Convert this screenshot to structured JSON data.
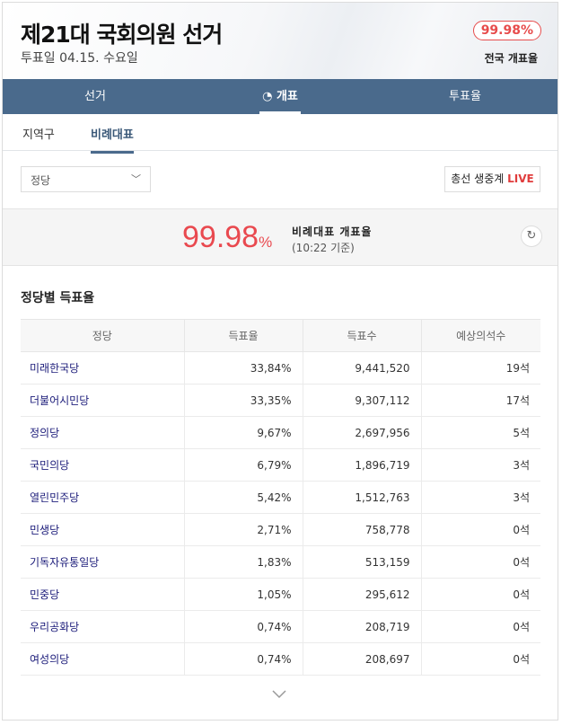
{
  "header": {
    "title": "제21대 국회의원 선거",
    "subtitle": "투표일 04.15. 수요일",
    "badge": "99.98%",
    "badge_label": "전국 개표율"
  },
  "nav": [
    {
      "label": "선거"
    },
    {
      "label": "개표",
      "icon": "ballot-icon",
      "active": true
    },
    {
      "label": "투표율"
    }
  ],
  "subtabs": [
    {
      "label": "지역구"
    },
    {
      "label": "비례대표",
      "active": true
    }
  ],
  "filter": {
    "selected": "정당"
  },
  "live_button": {
    "label": "총선 생중계",
    "live": "LIVE"
  },
  "rate": {
    "value": "99.98",
    "unit": "%",
    "label": "비례대표 개표율",
    "time": "(10:22 기준)"
  },
  "section_title": "정당별 득표율",
  "table": {
    "headers": [
      "정당",
      "득표율",
      "득표수",
      "예상의석수"
    ],
    "rows": [
      [
        "미래한국당",
        "33,84%",
        "9,441,520",
        "19석"
      ],
      [
        "더불어시민당",
        "33,35%",
        "9,307,112",
        "17석"
      ],
      [
        "정의당",
        "9,67%",
        "2,697,956",
        "5석"
      ],
      [
        "국민의당",
        "6,79%",
        "1,896,719",
        "3석"
      ],
      [
        "열린민주당",
        "5,42%",
        "1,512,763",
        "3석"
      ],
      [
        "민생당",
        "2,71%",
        "758,778",
        "0석"
      ],
      [
        "기독자유통일당",
        "1,83%",
        "513,159",
        "0석"
      ],
      [
        "민중당",
        "1,05%",
        "295,612",
        "0석"
      ],
      [
        "우리공화당",
        "0,74%",
        "208,719",
        "0석"
      ],
      [
        "여성의당",
        "0,74%",
        "208,697",
        "0석"
      ]
    ]
  },
  "colors": {
    "nav": "#4a6a8c",
    "accent": "#e9494f",
    "party_link": "#1c1c7a"
  }
}
